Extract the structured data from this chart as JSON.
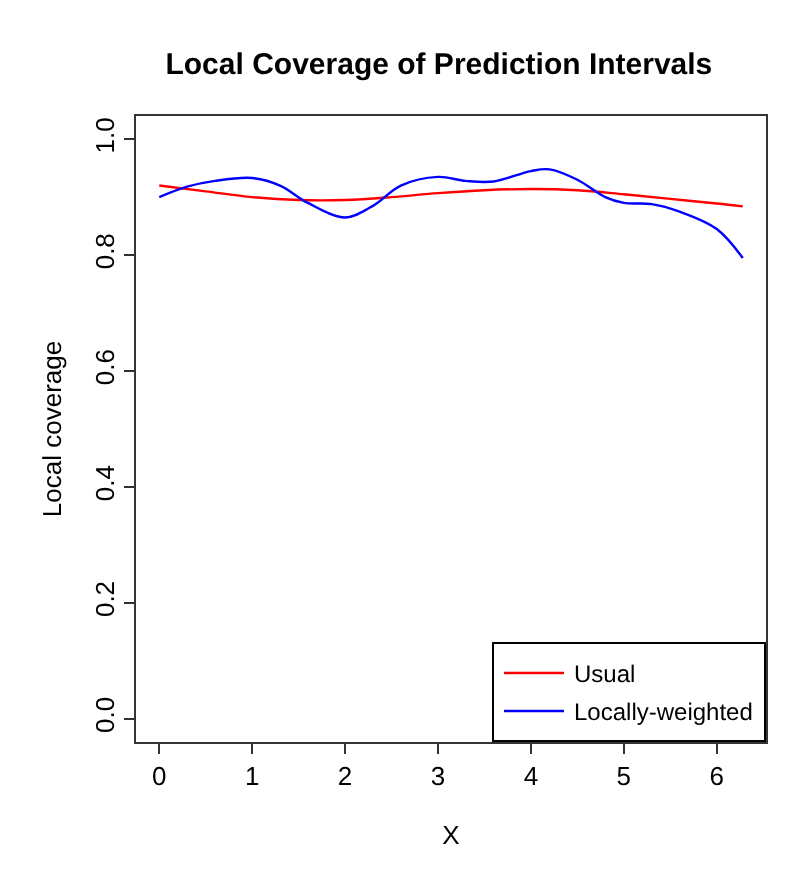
{
  "chart_data": {
    "type": "line",
    "title": "Local Coverage of Prediction Intervals",
    "xlabel": "X",
    "ylabel": "Local coverage",
    "xlim": [
      -0.25,
      6.53
    ],
    "ylim": [
      -0.04,
      1.04
    ],
    "xticks": [
      0,
      1,
      2,
      3,
      4,
      5,
      6
    ],
    "yticks": [
      {
        "value": 0,
        "label": "0.0"
      },
      0.2,
      0.4,
      0.6,
      0.8,
      {
        "value": 1,
        "label": "1.0"
      }
    ],
    "legend": "bottom right",
    "line_style": "solid",
    "marker": "none",
    "series": [
      {
        "name": "Usual",
        "color": "#ff0000",
        "x": [
          0,
          0.5,
          1,
          1.5,
          2,
          2.5,
          3,
          3.5,
          4,
          4.5,
          5,
          5.5,
          6,
          6.28
        ],
        "values": [
          0.92,
          0.91,
          0.9,
          0.895,
          0.895,
          0.9,
          0.907,
          0.912,
          0.914,
          0.912,
          0.905,
          0.897,
          0.889,
          0.884
        ]
      },
      {
        "name": "Locally-weighted",
        "color": "#0000ff",
        "x": [
          0,
          0.3,
          0.6,
          1,
          1.3,
          1.6,
          2,
          2.3,
          2.6,
          3,
          3.3,
          3.6,
          4,
          4.2,
          4.5,
          4.8,
          5,
          5.3,
          5.6,
          6,
          6.28
        ],
        "values": [
          0.9,
          0.918,
          0.928,
          0.933,
          0.92,
          0.89,
          0.865,
          0.885,
          0.92,
          0.935,
          0.928,
          0.927,
          0.945,
          0.948,
          0.93,
          0.9,
          0.89,
          0.888,
          0.875,
          0.845,
          0.795
        ]
      }
    ]
  }
}
